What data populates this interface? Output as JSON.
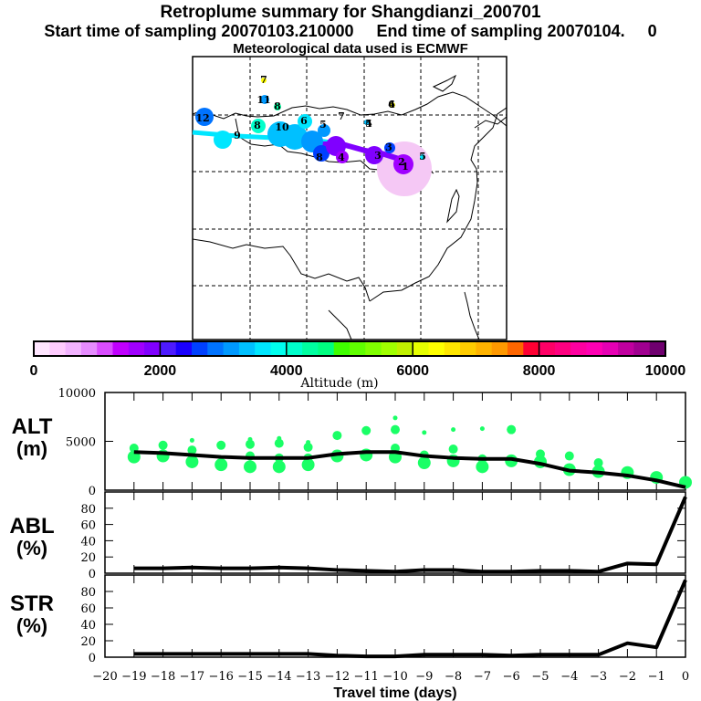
{
  "header": {
    "title": "Retroplume summary for Shangdianzi_200701",
    "sampling_line": "Start time of sampling 20070103.210000     End time of sampling 20070104.     0",
    "met_line": "Meteorological data used is ECMWF"
  },
  "colorbar": {
    "label": "Altitude (m)",
    "range": [
      0,
      10000
    ],
    "tick_labels": [
      "0",
      "2000",
      "4000",
      "6000",
      "8000",
      "10000"
    ],
    "colors": [
      "#ffe6ff",
      "#ffccff",
      "#f2b3ff",
      "#e68cff",
      "#d94dff",
      "#c000ff",
      "#a000ff",
      "#8000ff",
      "#4d1aff",
      "#1a00ff",
      "#0040ff",
      "#0073ff",
      "#0099ff",
      "#00c0ff",
      "#00e6ff",
      "#00ffee",
      "#00ffcc",
      "#00ffa0",
      "#00ff80",
      "#40ff00",
      "#60ff00",
      "#80ff00",
      "#a0ff00",
      "#c0f000",
      "#e6ff00",
      "#ffff00",
      "#ffe600",
      "#ffcc00",
      "#ffb300",
      "#ff9900",
      "#ff6600",
      "#ff0033",
      "#ff0066",
      "#ff0080",
      "#ff00a0",
      "#ff00b3",
      "#e600b3",
      "#c0009f",
      "#a00090",
      "#6f006f"
    ]
  },
  "map": {
    "description": "East Asia map with retroplume centroid track",
    "labels": [
      {
        "text": "7",
        "color": "#ffff00"
      },
      {
        "text": "11",
        "color": "#0099ff"
      },
      {
        "text": "8",
        "color": "#00ffa0"
      },
      {
        "text": "12",
        "color": "#0073ff"
      },
      {
        "text": "8",
        "color": "#00ffcc"
      },
      {
        "text": "9",
        "color": "#00e6ff"
      },
      {
        "text": "10",
        "color": "#00c0ff"
      },
      {
        "text": "6",
        "color": "#00ffcc"
      },
      {
        "text": "5",
        "color": "#0099ff"
      },
      {
        "text": "7",
        "color": "#00ffcc"
      },
      {
        "text": "5",
        "color": "#0099ff"
      },
      {
        "text": "4",
        "color": "#0073ff"
      },
      {
        "text": "6",
        "color": "#ffff00"
      },
      {
        "text": "4",
        "color": "#0099ff"
      },
      {
        "text": "4",
        "color": "#8000ff"
      },
      {
        "text": "3",
        "color": "#8000ff"
      },
      {
        "text": "3",
        "color": "#0040ff"
      },
      {
        "text": "2",
        "color": "#a000ff"
      },
      {
        "text": "1",
        "color": "#a000ff"
      },
      {
        "text": "5",
        "color": "#00e6ff"
      },
      {
        "text": "8",
        "color": "#0040ff"
      }
    ]
  },
  "chart_data": [
    {
      "type": "scatter+line",
      "panel_label": "ALT",
      "panel_unit": "(m)",
      "ylim": [
        0,
        10000
      ],
      "yticks": [
        "0",
        "5000",
        "10000"
      ],
      "x": [
        -19,
        -18,
        -17,
        -16,
        -15,
        -14,
        -13,
        -12,
        -11,
        -10,
        -9,
        -8,
        -7,
        -6,
        -5,
        -4,
        -3,
        -2,
        -1,
        0
      ],
      "line_values": [
        3900,
        3800,
        3600,
        3400,
        3300,
        3300,
        3300,
        3700,
        3900,
        3900,
        3500,
        3300,
        3200,
        3200,
        2700,
        2000,
        1800,
        1500,
        1000,
        300
      ],
      "cluster_points": [
        {
          "x": -19,
          "y": [
            4300,
            3400
          ]
        },
        {
          "x": -18,
          "y": [
            4600,
            3500
          ]
        },
        {
          "x": -17,
          "y": [
            5100,
            4100,
            2900
          ]
        },
        {
          "x": -16,
          "y": [
            4600,
            2600
          ]
        },
        {
          "x": -15,
          "y": [
            5200,
            4700,
            3500,
            2400
          ]
        },
        {
          "x": -14,
          "y": [
            5300,
            4800,
            3300,
            2400
          ]
        },
        {
          "x": -13,
          "y": [
            4900,
            4400,
            3300,
            2600
          ]
        },
        {
          "x": -12,
          "y": [
            5600,
            3500
          ]
        },
        {
          "x": -11,
          "y": [
            6100,
            3600
          ]
        },
        {
          "x": -10,
          "y": [
            7400,
            6200,
            4300,
            3400
          ]
        },
        {
          "x": -9,
          "y": [
            5900,
            3600,
            2800
          ]
        },
        {
          "x": -8,
          "y": [
            6200,
            4200,
            3000
          ]
        },
        {
          "x": -7,
          "y": [
            6300,
            3200,
            2400
          ]
        },
        {
          "x": -6,
          "y": [
            6200,
            3000
          ]
        },
        {
          "x": -5,
          "y": [
            3700,
            2900
          ]
        },
        {
          "x": -4,
          "y": [
            3500,
            2100
          ]
        },
        {
          "x": -3,
          "y": [
            2800,
            1900
          ]
        },
        {
          "x": -2,
          "y": [
            1800
          ]
        },
        {
          "x": -1,
          "y": [
            1300
          ]
        },
        {
          "x": 0,
          "y": [
            800
          ]
        }
      ],
      "point_color": "#1aff66"
    },
    {
      "type": "line",
      "panel_label": "ABL",
      "panel_unit": "(%)",
      "ylim": [
        0,
        100
      ],
      "yticks": [
        "0",
        "20",
        "40",
        "60",
        "80"
      ],
      "x": [
        -19,
        -18,
        -17,
        -16,
        -15,
        -14,
        -13,
        -12,
        -11,
        -10,
        -9,
        -8,
        -7,
        -6,
        -5,
        -4,
        -3,
        -2,
        -1,
        0
      ],
      "values": [
        6,
        6,
        7,
        6,
        6,
        7,
        6,
        4,
        3,
        2,
        4,
        4,
        2,
        2,
        3,
        3,
        2,
        12,
        11,
        94
      ]
    },
    {
      "type": "line",
      "panel_label": "STR",
      "panel_unit": "(%)",
      "ylim": [
        0,
        100
      ],
      "yticks": [
        "0",
        "20",
        "40",
        "60",
        "80"
      ],
      "x": [
        -19,
        -18,
        -17,
        -16,
        -15,
        -14,
        -13,
        -12,
        -11,
        -10,
        -9,
        -8,
        -7,
        -6,
        -5,
        -4,
        -3,
        -2,
        -1,
        0
      ],
      "values": [
        4,
        4,
        4,
        4,
        4,
        4,
        4,
        2,
        1,
        1,
        3,
        3,
        3,
        2,
        3,
        3,
        3,
        17,
        12,
        94
      ],
      "xlabel": "Travel time (days)",
      "xticks": [
        "−20",
        "−19",
        "−18",
        "−17",
        "−16",
        "−15",
        "−14",
        "−13",
        "−12",
        "−11",
        "−10",
        "−9",
        "−8",
        "−7",
        "−6",
        "−5",
        "−4",
        "−3",
        "−2",
        "−1",
        "0"
      ],
      "xlim": [
        -20,
        0
      ]
    }
  ]
}
